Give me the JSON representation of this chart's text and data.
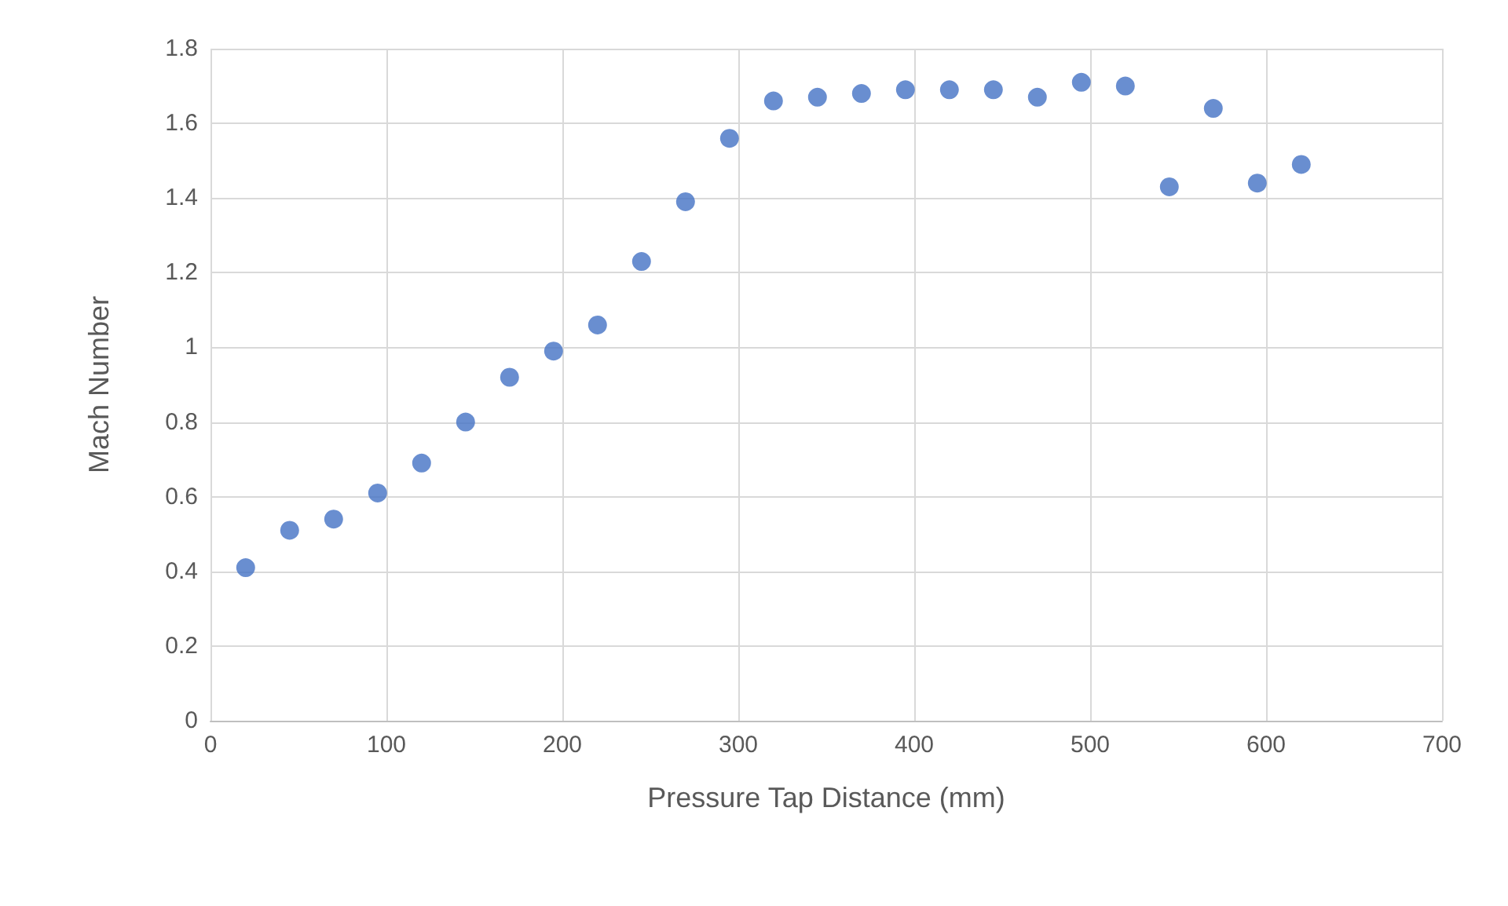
{
  "chart_data": {
    "type": "scatter",
    "xlabel": "Pressure Tap Distance (mm)",
    "ylabel": "Mach Number",
    "x": [
      20,
      45,
      70,
      95,
      120,
      145,
      170,
      195,
      220,
      245,
      270,
      295,
      320,
      345,
      370,
      395,
      420,
      445,
      470,
      495,
      520,
      545,
      570,
      595,
      620
    ],
    "series": [
      {
        "color": "#4472c4",
        "values": [
          0.41,
          0.51,
          0.54,
          0.61,
          0.69,
          0.8,
          0.92,
          0.99,
          1.06,
          1.23,
          1.39,
          1.56,
          1.66,
          1.67,
          1.68,
          1.69,
          1.69,
          1.69,
          1.67,
          1.71,
          1.7,
          1.43,
          1.64,
          1.44,
          1.49
        ]
      }
    ],
    "xlim": [
      0,
      700
    ],
    "xticks": [
      0,
      100,
      200,
      300,
      400,
      500,
      600,
      700
    ],
    "ylim": [
      0,
      1.8
    ],
    "yticks": [
      0,
      0.2,
      0.4,
      0.6,
      0.8,
      1,
      1.2,
      1.4,
      1.6,
      1.8
    ],
    "grid": true,
    "marker": "circle"
  }
}
